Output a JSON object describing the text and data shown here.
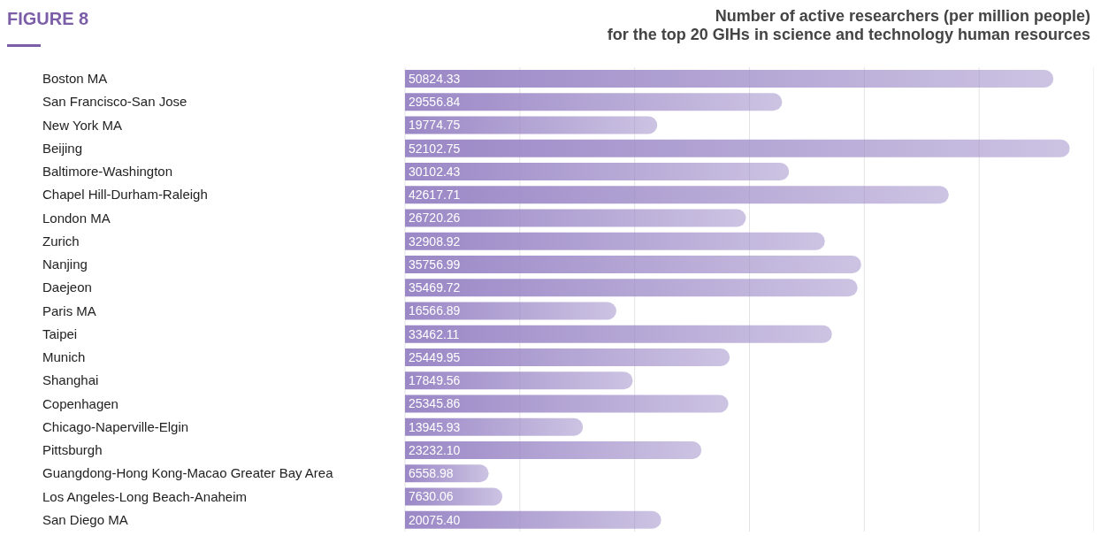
{
  "chart_data": {
    "type": "bar",
    "orientation": "horizontal",
    "title": "Number of active researchers (per million people)\nfor the top 20 GIHs in science and technology human resources",
    "annotations": [
      "FIGURE 8"
    ],
    "categories": [
      "Boston MA",
      "San Francisco-San Jose",
      "New York MA",
      "Beijing",
      "Baltimore-Washington",
      "Chapel Hill-Durham-Raleigh",
      "London MA",
      "Zurich",
      "Nanjing",
      "Daejeon",
      "Paris MA",
      "Taipei",
      "Munich",
      "Shanghai",
      "Copenhagen",
      "Chicago-Naperville-Elgin",
      "Pittsburgh",
      "Guangdong-Hong Kong-Macao Greater Bay Area",
      "Los Angeles-Long Beach-Anaheim",
      "San Diego MA"
    ],
    "values": [
      50824.33,
      29556.84,
      19774.75,
      52102.75,
      30102.43,
      42617.71,
      26720.26,
      32908.92,
      35756.99,
      35469.72,
      16566.89,
      33462.11,
      25449.95,
      17849.56,
      25345.86,
      13945.93,
      23232.1,
      6558.98,
      7630.06,
      20075.4
    ],
    "value_labels": [
      "50824.33",
      "29556.84",
      "19774.75",
      "52102.75",
      "30102.43",
      "42617.71",
      "26720.26",
      "32908.92",
      "35756.99",
      "35469.72",
      "16566.89",
      "33462.11",
      "25449.95",
      "17849.56",
      "25345.86",
      "13945.93",
      "23232.10",
      "6558.98",
      "7630.06",
      "20075.40"
    ],
    "color": "#9a87c6",
    "tick_labels": "y",
    "grid": "x",
    "legend": false
  }
}
